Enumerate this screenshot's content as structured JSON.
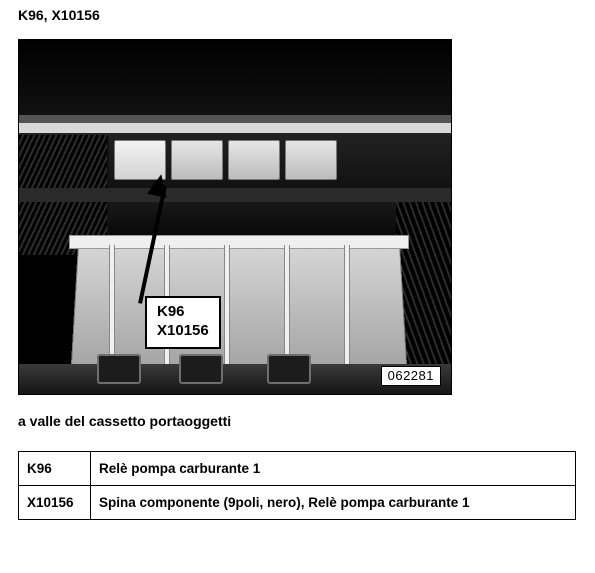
{
  "title": "K96, X10156",
  "callout": {
    "line1": "K96",
    "line2": "X10156"
  },
  "photo_id": "062281",
  "caption": "a valle del cassetto portaoggetti",
  "legend": {
    "rows": [
      {
        "code": "K96",
        "desc": "Relè pompa carburante 1"
      },
      {
        "code": "X10156",
        "desc": "Spina componente (9poli, nero), Relè pompa carburante 1"
      }
    ]
  },
  "colors": {
    "page_bg": "#ffffff",
    "text": "#000000",
    "border": "#000000"
  }
}
